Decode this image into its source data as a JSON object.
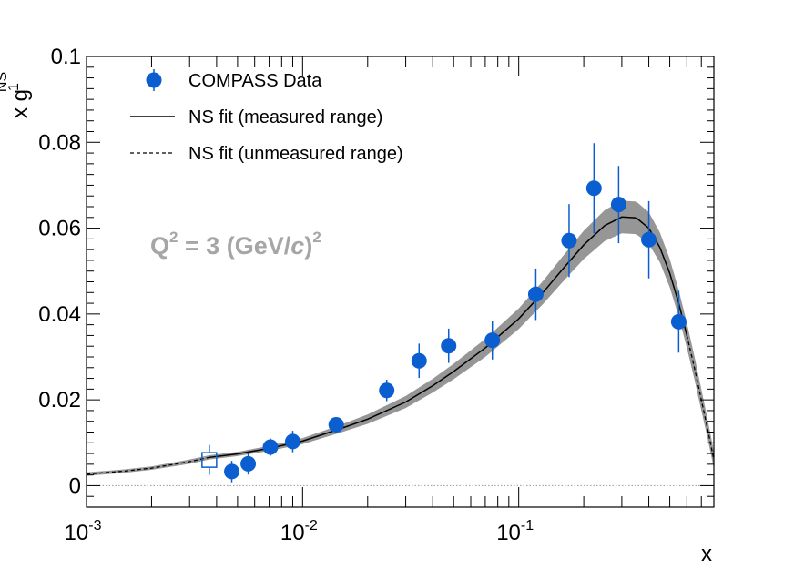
{
  "chart_data": {
    "type": "scatter",
    "title": "",
    "xlabel": "x",
    "ylabel": "x g",
    "ylabel_sup": "NS",
    "ylabel_sub": "1",
    "x_scale": "log",
    "xlim": [
      0.001,
      0.8
    ],
    "ylim": [
      -0.005,
      0.1
    ],
    "grid": false,
    "legend_position": "top-left",
    "y_ticks": [
      {
        "value": 0,
        "label": "0"
      },
      {
        "value": 0.02,
        "label": "0.02"
      },
      {
        "value": 0.04,
        "label": "0.04"
      },
      {
        "value": 0.06,
        "label": "0.06"
      },
      {
        "value": 0.08,
        "label": "0.08"
      },
      {
        "value": 0.1,
        "label": "0.1"
      }
    ],
    "x_ticks": [
      {
        "value": 0.001,
        "base": "10",
        "exp": "-3"
      },
      {
        "value": 0.01,
        "base": "10",
        "exp": "-2"
      },
      {
        "value": 0.1,
        "base": "10",
        "exp": "-1"
      }
    ],
    "annotation": {
      "q": "Q",
      "q_sup": "2",
      "middle": " = 3 (GeV/",
      "italic": "c",
      "close": ")",
      "close_sup": "2"
    },
    "colors": {
      "data": "#0b5ed0",
      "fit": "#000000",
      "band": "#969696",
      "annotation": "#a6a6a6",
      "zero_line": "#9a9a9a"
    },
    "series": [
      {
        "name": "COMPASS Data",
        "kind": "points",
        "points": [
          {
            "x": 0.0047,
            "y": 0.0033,
            "err": 0.0025
          },
          {
            "x": 0.0056,
            "y": 0.0051,
            "err": 0.0025
          },
          {
            "x": 0.0071,
            "y": 0.009,
            "err": 0.002
          },
          {
            "x": 0.009,
            "y": 0.0103,
            "err": 0.0025
          },
          {
            "x": 0.0143,
            "y": 0.0142,
            "err": 0.0015
          },
          {
            "x": 0.0245,
            "y": 0.0222,
            "err": 0.0025
          },
          {
            "x": 0.0346,
            "y": 0.0291,
            "err": 0.004
          },
          {
            "x": 0.0474,
            "y": 0.0326,
            "err": 0.004
          },
          {
            "x": 0.0755,
            "y": 0.0339,
            "err": 0.0045
          },
          {
            "x": 0.12,
            "y": 0.0446,
            "err": 0.006
          },
          {
            "x": 0.171,
            "y": 0.0571,
            "err": 0.0085
          },
          {
            "x": 0.223,
            "y": 0.0693,
            "err": 0.0105
          },
          {
            "x": 0.29,
            "y": 0.0655,
            "err": 0.009
          },
          {
            "x": 0.4,
            "y": 0.0573,
            "err": 0.009
          },
          {
            "x": 0.55,
            "y": 0.0382,
            "err": 0.0072
          }
        ]
      },
      {
        "name": "",
        "kind": "open-square",
        "points": [
          {
            "x": 0.0037,
            "y": 0.006,
            "err": 0.0035
          }
        ]
      },
      {
        "name": "NS fit (measured range)",
        "kind": "line",
        "line_style": "solid",
        "x": [
          0.0037,
          0.005,
          0.007,
          0.01,
          0.015,
          0.02,
          0.03,
          0.04,
          0.05,
          0.07,
          0.1,
          0.13,
          0.16,
          0.2,
          0.25,
          0.3,
          0.35,
          0.4,
          0.45,
          0.5,
          0.55,
          0.6
        ],
        "y": [
          0.0066,
          0.0074,
          0.0087,
          0.0104,
          0.0133,
          0.0155,
          0.0195,
          0.0233,
          0.0266,
          0.0321,
          0.0389,
          0.0451,
          0.0505,
          0.0561,
          0.0606,
          0.0626,
          0.0624,
          0.06,
          0.0555,
          0.0495,
          0.0425,
          0.035
        ],
        "band_halfwidth": [
          0.0005,
          0.0005,
          0.0006,
          0.0007,
          0.0009,
          0.0011,
          0.0014,
          0.0016,
          0.0018,
          0.0021,
          0.0024,
          0.0027,
          0.003,
          0.0033,
          0.0036,
          0.0038,
          0.0038,
          0.0037,
          0.0035,
          0.0033,
          0.0031,
          0.0029
        ]
      },
      {
        "name": "NS fit (unmeasured range)",
        "kind": "line",
        "line_style": "dashed",
        "segments": [
          {
            "x": [
              0.001,
              0.0015,
              0.002,
              0.003,
              0.0037
            ],
            "y": [
              0.0027,
              0.0034,
              0.0041,
              0.0056,
              0.0066
            ],
            "band_halfwidth": [
              0.0004,
              0.0004,
              0.0004,
              0.0005,
              0.0005
            ]
          },
          {
            "x": [
              0.6,
              0.65,
              0.7,
              0.75,
              0.8
            ],
            "y": [
              0.035,
              0.0275,
              0.02,
              0.013,
              0.006
            ],
            "band_halfwidth": [
              0.0029,
              0.0027,
              0.0025,
              0.0022,
              0.002
            ]
          }
        ]
      }
    ]
  }
}
